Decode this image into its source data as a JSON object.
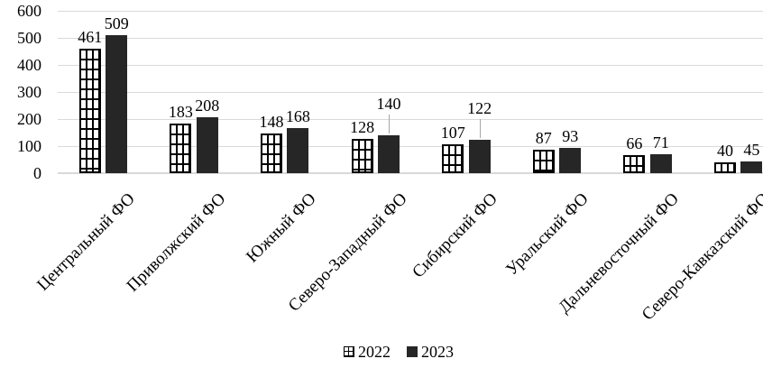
{
  "chart_data": {
    "type": "bar",
    "title": "",
    "categories": [
      "Центральный ФО",
      "Приволжский ФО",
      "Южный ФО",
      "Северо-Западный ФО",
      "Сибирский ФО",
      "Уральский ФО",
      "Дальневосточный ФО",
      "Северо-Кавказский ФО"
    ],
    "series": [
      {
        "name": "2022",
        "style": "hatched-grid",
        "values": [
          461,
          183,
          148,
          128,
          107,
          87,
          66,
          40
        ]
      },
      {
        "name": "2023",
        "style": "solid",
        "values": [
          509,
          208,
          168,
          140,
          122,
          93,
          71,
          45
        ]
      }
    ],
    "data_labels": {
      "visible": true,
      "leader_lines": [
        {
          "series": "2023",
          "category_index": 3
        },
        {
          "series": "2023",
          "category_index": 4
        }
      ]
    },
    "y_axis": {
      "min": 0,
      "max": 600,
      "step": 100,
      "ticks": [
        "0",
        "100",
        "200",
        "300",
        "400",
        "500",
        "600"
      ]
    },
    "x_axis": {
      "label_rotation_deg": 45
    },
    "grid": "horizontal",
    "legend": {
      "position": "bottom",
      "entries": [
        "2022",
        "2023"
      ]
    }
  },
  "colors": {
    "solid_bar": "#262626",
    "hatch_line": "#000000",
    "gridline": "#d9d9d9",
    "axis_line": "#d9d9d9",
    "leader_line": "#a6a6a6",
    "text": "#000000",
    "background": "#ffffff"
  }
}
